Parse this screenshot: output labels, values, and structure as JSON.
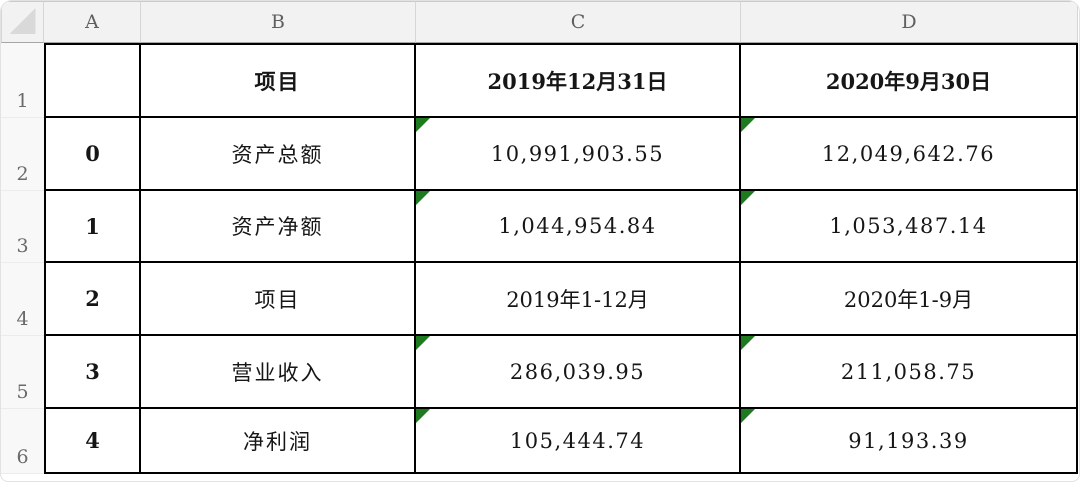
{
  "sheet": {
    "column_headers": [
      "A",
      "B",
      "C",
      "D"
    ],
    "row_numbers": [
      "1",
      "2",
      "3",
      "4",
      "5",
      "6"
    ],
    "rows": [
      {
        "cells": [
          {
            "text": ""
          },
          {
            "text": "项目"
          },
          {
            "text": "2019年12月31日"
          },
          {
            "text": "2020年9月30日"
          }
        ]
      },
      {
        "cells": [
          {
            "text": "0"
          },
          {
            "text": "资产总额"
          },
          {
            "text": "10,991,903.55",
            "flag": true
          },
          {
            "text": "12,049,642.76",
            "flag": true
          }
        ]
      },
      {
        "cells": [
          {
            "text": "1"
          },
          {
            "text": "资产净额"
          },
          {
            "text": "1,044,954.84",
            "flag": true
          },
          {
            "text": "1,053,487.14",
            "flag": true
          }
        ]
      },
      {
        "cells": [
          {
            "text": "2"
          },
          {
            "text": "项目"
          },
          {
            "text": "2019年1-12月",
            "flag": false
          },
          {
            "text": "2020年1-9月",
            "flag": false
          }
        ]
      },
      {
        "cells": [
          {
            "text": "3"
          },
          {
            "text": "营业收入"
          },
          {
            "text": "286,039.95",
            "flag": true
          },
          {
            "text": "211,058.75",
            "flag": true
          }
        ]
      },
      {
        "cells": [
          {
            "text": "4"
          },
          {
            "text": "净利润"
          },
          {
            "text": "105,444.74",
            "flag": true
          },
          {
            "text": "91,193.39",
            "flag": true
          }
        ]
      }
    ],
    "colors": {
      "flag_indicator_green": "#1e7a1e",
      "header_bg": "#f2f2f2",
      "grid_line_black": "#000000",
      "header_text_gray": "#5f5f5f"
    },
    "icons": {
      "corner": "select-all-triangle",
      "cell_flag": "stored-as-text-indicator"
    }
  }
}
